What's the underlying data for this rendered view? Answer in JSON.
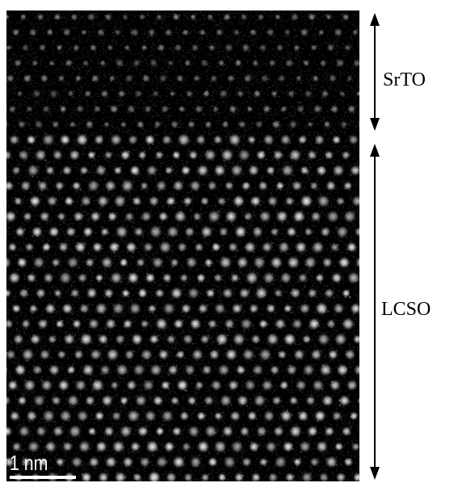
{
  "image": {
    "background": "#000000",
    "description_type": "atomic-resolution STEM image",
    "lattice_color": "#f2f2f2"
  },
  "scale_bar": {
    "label": "1 nm",
    "color": "#ffffff"
  },
  "regions": {
    "top": {
      "label": "SrTO"
    },
    "bottom": {
      "label": "LCSO"
    }
  },
  "arrows": {
    "color": "#000000"
  }
}
